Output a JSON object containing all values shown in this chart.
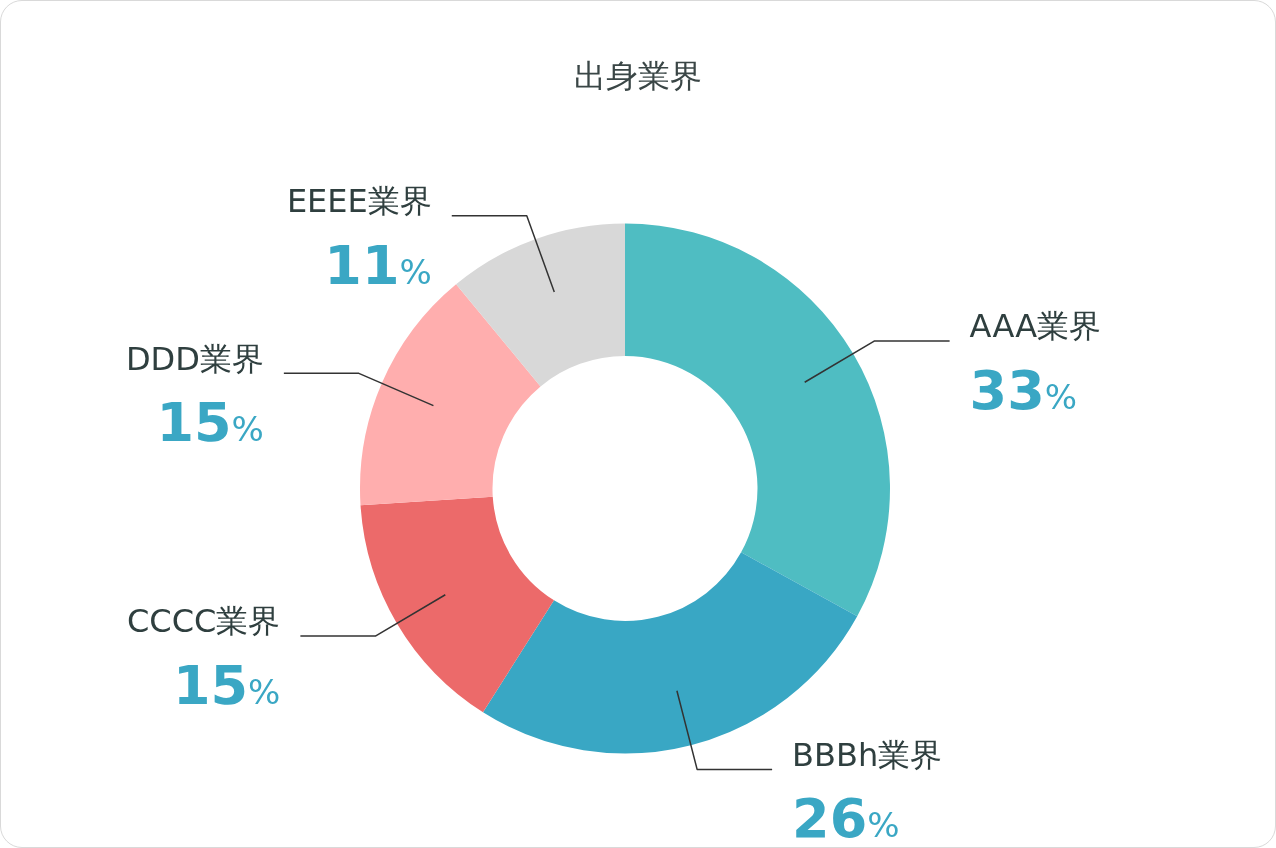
{
  "chart_data": {
    "type": "donut",
    "title": "出身業界",
    "categories": [
      "AAA業界",
      "BBBh業界",
      "CCCC業界",
      "DDD業界",
      "EEEE業界"
    ],
    "values": [
      33,
      26,
      15,
      15,
      11
    ],
    "value_labels": [
      "33%",
      "26%",
      "15%",
      "15%",
      "11%"
    ],
    "colors": [
      "#4fbdc2",
      "#39a7c4",
      "#ec6a6a",
      "#ffaeae",
      "#d8d8d8"
    ],
    "legend": false
  }
}
